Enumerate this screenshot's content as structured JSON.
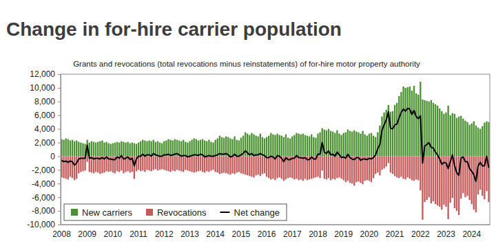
{
  "chart_data": {
    "type": "bar",
    "title": "Change in for-hire carrier population",
    "subtitle": "Grants and revocations (total revocations minus reinstatements) of for-hire motor property authority",
    "categories": [
      "2008",
      null,
      null,
      null,
      null,
      null,
      null,
      null,
      null,
      null,
      null,
      null,
      "2009",
      null,
      null,
      null,
      null,
      null,
      null,
      null,
      null,
      null,
      null,
      null,
      "2010",
      null,
      null,
      null,
      null,
      null,
      null,
      null,
      null,
      null,
      null,
      null,
      "2011",
      null,
      null,
      null,
      null,
      null,
      null,
      null,
      null,
      null,
      null,
      null,
      "2012",
      null,
      null,
      null,
      null,
      null,
      null,
      null,
      null,
      null,
      null,
      null,
      "2013",
      null,
      null,
      null,
      null,
      null,
      null,
      null,
      null,
      null,
      null,
      null,
      "2014",
      null,
      null,
      null,
      null,
      null,
      null,
      null,
      null,
      null,
      null,
      null,
      "2015",
      null,
      null,
      null,
      null,
      null,
      null,
      null,
      null,
      null,
      null,
      null,
      "2016",
      null,
      null,
      null,
      null,
      null,
      null,
      null,
      null,
      null,
      null,
      null,
      "2017",
      null,
      null,
      null,
      null,
      null,
      null,
      null,
      null,
      null,
      null,
      null,
      "2018",
      null,
      null,
      null,
      null,
      null,
      null,
      null,
      null,
      null,
      null,
      null,
      "2019",
      null,
      null,
      null,
      null,
      null,
      null,
      null,
      null,
      null,
      null,
      null,
      "2020",
      null,
      null,
      null,
      null,
      null,
      null,
      null,
      null,
      null,
      null,
      null,
      "2021",
      null,
      null,
      null,
      null,
      null,
      null,
      null,
      null,
      null,
      null,
      null,
      "2022",
      null,
      null,
      null,
      null,
      null,
      null,
      null,
      null,
      null,
      null,
      null,
      "2023",
      null,
      null,
      null,
      null,
      null,
      null,
      null,
      null,
      null,
      null,
      null,
      "2024",
      null,
      null,
      null,
      null,
      null,
      null,
      null,
      null
    ],
    "series": [
      {
        "name": "New carriers",
        "type": "bar",
        "color": "#4a9130",
        "values": [
          2500,
          2400,
          2600,
          2500,
          2300,
          2400,
          2200,
          2300,
          2100,
          2000,
          1900,
          1800,
          2400,
          2000,
          2200,
          2100,
          2000,
          2100,
          2200,
          2300,
          2000,
          2100,
          1900,
          1800,
          1900,
          2000,
          2100,
          2000,
          2200,
          2100,
          2000,
          2100,
          1900,
          2000,
          1900,
          1800,
          2000,
          2200,
          2400,
          2300,
          2200,
          2300,
          2200,
          2400,
          2100,
          2200,
          2000,
          1900,
          2200,
          2300,
          2500,
          2400,
          2300,
          2500,
          2400,
          2300,
          2200,
          2400,
          2100,
          2000,
          2200,
          2400,
          2600,
          2500,
          2300,
          2400,
          2500,
          2300,
          2200,
          2400,
          2100,
          2000,
          2400,
          2600,
          3000,
          2800,
          2700,
          2900,
          2800,
          2600,
          2500,
          2900,
          2400,
          2300,
          2700,
          3000,
          3500,
          3300,
          3100,
          3400,
          3200,
          3000,
          2900,
          3300,
          2800,
          2600,
          2800,
          3000,
          3400,
          3200,
          3100,
          3300,
          3100,
          3000,
          2800,
          3200,
          2700,
          2600,
          2900,
          3100,
          3400,
          3300,
          3200,
          3300,
          3100,
          3000,
          2900,
          3200,
          2800,
          2700,
          3300,
          3500,
          4100,
          3900,
          3800,
          4000,
          3700,
          3600,
          3400,
          3800,
          3300,
          3100,
          3400,
          3500,
          3900,
          3700,
          3600,
          3800,
          3600,
          3500,
          3300,
          3700,
          3200,
          3000,
          3300,
          3400,
          3000,
          2800,
          3500,
          4500,
          5800,
          6400,
          6800,
          7500,
          6500,
          6600,
          7500,
          7800,
          8800,
          9400,
          10200,
          10000,
          10100,
          10200,
          9600,
          10300,
          9200,
          9000,
          10900,
          8300,
          8200,
          8100,
          8000,
          8200,
          7800,
          7600,
          7400,
          7000,
          6600,
          6200,
          6400,
          7400,
          6000,
          6300,
          6200,
          5600,
          5800,
          5900,
          5500,
          5200,
          5000,
          4600,
          4800,
          5100,
          4500,
          4200,
          4000,
          4400,
          4900,
          5100,
          5000
        ]
      },
      {
        "name": "Revocations",
        "type": "bar",
        "color": "#c85a5a",
        "values": [
          -3100,
          -3200,
          -3300,
          -3400,
          -3000,
          -3200,
          -3500,
          -3300,
          -2500,
          -2300,
          -2200,
          -2100,
          -800,
          -2300,
          -2400,
          -2500,
          -2300,
          -2400,
          -2600,
          -2500,
          -2400,
          -2200,
          -2300,
          -2200,
          -2400,
          -2500,
          -2200,
          -2300,
          -2100,
          -2500,
          -2300,
          -2200,
          -2400,
          -2300,
          -3300,
          -2200,
          -2000,
          -2200,
          -2100,
          -2300,
          -2000,
          -2100,
          -2200,
          -2000,
          -1900,
          -2100,
          -2000,
          -1900,
          -2000,
          -2100,
          -2200,
          -2300,
          -2100,
          -2200,
          -2000,
          -2100,
          -2200,
          -2300,
          -2000,
          -2100,
          -2200,
          -2300,
          -2400,
          -2300,
          -2200,
          -2100,
          -2300,
          -2400,
          -2200,
          -2300,
          -2100,
          -2000,
          -2300,
          -2400,
          -2600,
          -2500,
          -2400,
          -2500,
          -2600,
          -2700,
          -2500,
          -2600,
          -2400,
          -2300,
          -2500,
          -2600,
          -2700,
          -2800,
          -2900,
          -3000,
          -3100,
          -2800,
          -2700,
          -2900,
          -2600,
          -2500,
          -3000,
          -3200,
          -3400,
          -3300,
          -3500,
          -3200,
          -3100,
          -3300,
          -3600,
          -3400,
          -3200,
          -3100,
          -3200,
          -3400,
          -3300,
          -3500,
          -3400,
          -3600,
          -3300,
          -3500,
          -3400,
          -3300,
          -3200,
          -3100,
          -3000,
          -3200,
          -2100,
          -3300,
          -3400,
          -3200,
          -3500,
          -3300,
          -3400,
          -3200,
          -3100,
          -3300,
          -3500,
          -3800,
          -3600,
          -3900,
          -4000,
          -4300,
          -3800,
          -3700,
          -3900,
          -4100,
          -3600,
          -3500,
          -3600,
          -3800,
          -3200,
          -2600,
          -2400,
          -2800,
          -2000,
          -1800,
          -1500,
          -1000,
          -2400,
          -2600,
          -2900,
          -3100,
          -3200,
          -3000,
          -3300,
          -3400,
          -3100,
          -3300,
          -3500,
          -3600,
          -3400,
          -3500,
          -5000,
          -9300,
          -6700,
          -6400,
          -6000,
          -6900,
          -6600,
          -7000,
          -7200,
          -7400,
          -7800,
          -7100,
          -7400,
          -9200,
          -6800,
          -6100,
          -7600,
          -8000,
          -8600,
          -6200,
          -5400,
          -6000,
          -5800,
          -6400,
          -7000,
          -7800,
          -8200,
          -5600,
          -4900,
          -5800,
          -6300,
          -5100,
          -6700
        ]
      },
      {
        "name": "Net change",
        "type": "line",
        "color": "#000000",
        "values": [
          -600,
          -800,
          -700,
          -900,
          -700,
          -800,
          -1300,
          -1000,
          -400,
          -300,
          -300,
          -300,
          1600,
          -300,
          -200,
          -400,
          -300,
          -300,
          -400,
          -200,
          -400,
          -100,
          -400,
          -400,
          -500,
          -500,
          -100,
          -300,
          100,
          -400,
          -300,
          -100,
          -500,
          -300,
          -1400,
          -400,
          0,
          0,
          300,
          0,
          200,
          200,
          0,
          400,
          200,
          100,
          0,
          0,
          200,
          200,
          300,
          100,
          200,
          300,
          400,
          200,
          0,
          100,
          100,
          -100,
          0,
          100,
          200,
          200,
          100,
          300,
          200,
          -100,
          0,
          100,
          0,
          0,
          100,
          200,
          400,
          300,
          300,
          400,
          200,
          -100,
          0,
          300,
          0,
          0,
          200,
          400,
          800,
          500,
          200,
          400,
          100,
          200,
          200,
          400,
          200,
          100,
          -200,
          -200,
          0,
          -100,
          -400,
          100,
          0,
          -300,
          -800,
          -200,
          -500,
          -500,
          -300,
          -300,
          100,
          -200,
          -200,
          -300,
          -200,
          -500,
          -500,
          -100,
          -400,
          -400,
          300,
          300,
          2000,
          600,
          400,
          800,
          200,
          300,
          0,
          600,
          200,
          -200,
          -100,
          -300,
          300,
          -200,
          -400,
          -500,
          -200,
          -200,
          -600,
          -400,
          -400,
          -500,
          -300,
          -400,
          -200,
          200,
          1100,
          1700,
          3800,
          4600,
          5300,
          6500,
          4100,
          4000,
          4600,
          4700,
          5600,
          6400,
          6900,
          6600,
          7000,
          6900,
          6100,
          6700,
          5800,
          5500,
          5900,
          -1000,
          1500,
          1700,
          2000,
          1300,
          1200,
          600,
          200,
          -400,
          -1200,
          -900,
          -1000,
          -1800,
          -800,
          200,
          -1400,
          -2400,
          -2800,
          -300,
          -100,
          -800,
          -800,
          -1800,
          -2200,
          -2700,
          -3700,
          -1400,
          -900,
          -1400,
          -1400,
          0,
          -1700
        ]
      }
    ],
    "ylim": [
      -10000,
      12000
    ],
    "yticks": [
      {
        "value": -10000,
        "label": "-10,000"
      },
      {
        "value": -8000,
        "label": "-8,000"
      },
      {
        "value": -6000,
        "label": "-6,000"
      },
      {
        "value": -4000,
        "label": "-4,000"
      },
      {
        "value": -2000,
        "label": "-2,000"
      },
      0,
      {
        "value": 2000,
        "label": "2,000"
      },
      {
        "value": 4000,
        "label": "4,000"
      },
      {
        "value": 6000,
        "label": "6,000"
      },
      {
        "value": 8000,
        "label": "8,000"
      },
      {
        "value": 10000,
        "label": "10,000"
      },
      {
        "value": 12000,
        "label": "12,000"
      }
    ],
    "grid": false,
    "legend": "lower left"
  }
}
